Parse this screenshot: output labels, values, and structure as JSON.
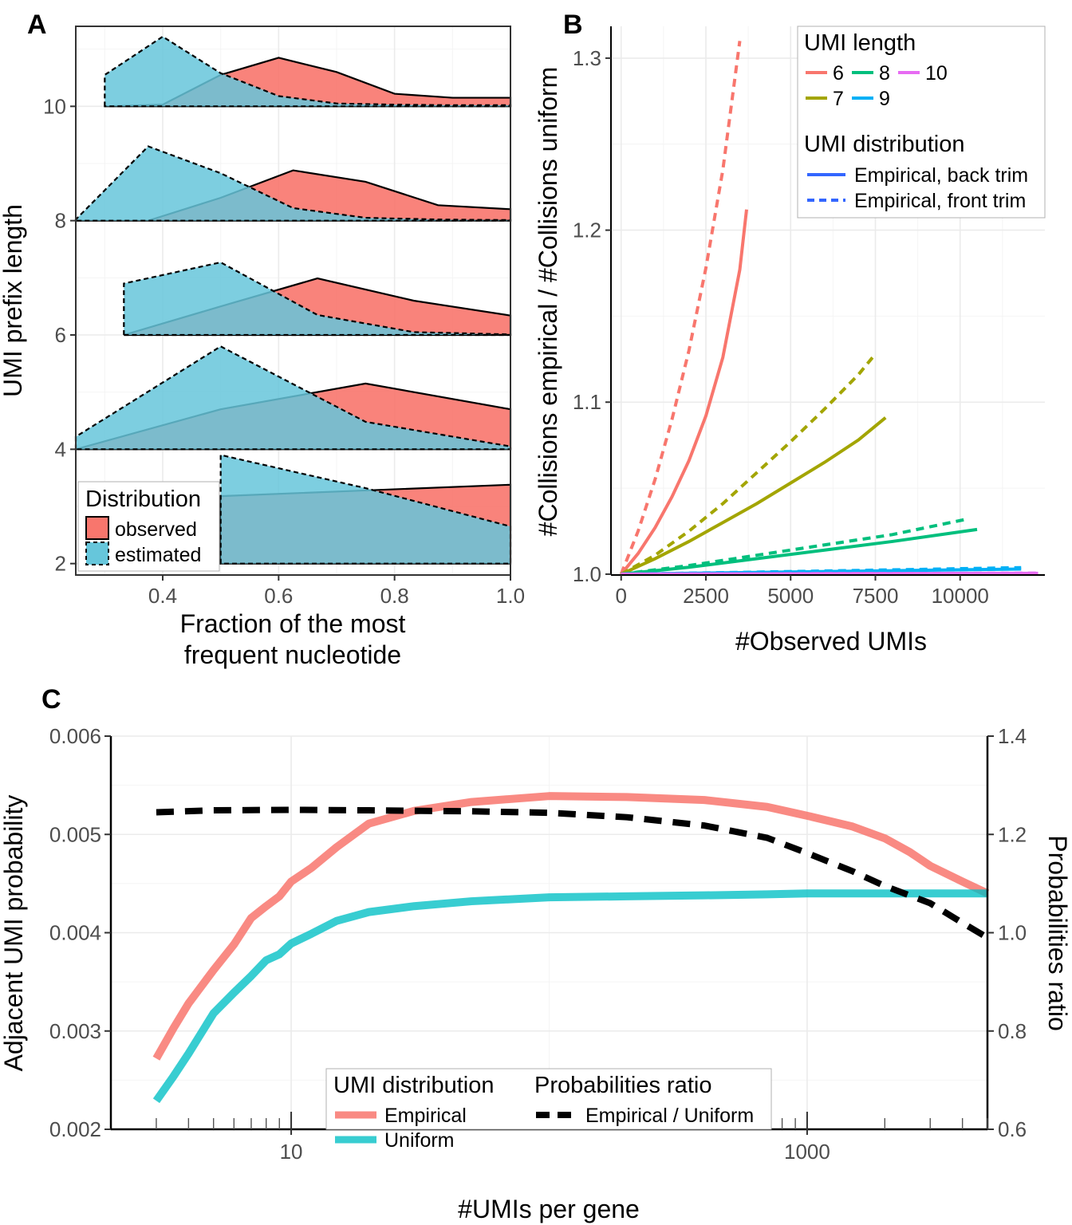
{
  "colors": {
    "observed": "#F8766D",
    "estimated": "#66C6DB",
    "len6": "#F8766D",
    "len7": "#A3A500",
    "len8": "#00BF7D",
    "len9": "#00B0F6",
    "len10": "#E76BF3",
    "blue": "#3366FF",
    "empirical": "#F8766D",
    "uniform": "#00BFC4",
    "ratio": "#000000"
  },
  "chart_data": [
    {
      "panel": "A",
      "type": "area",
      "xlabel": "Fraction of the most frequent nucleotide",
      "xlabel_lines": [
        "Fraction of the most",
        "frequent nucleotide"
      ],
      "ylabel": "UMI prefix length",
      "xlim": [
        0.25,
        1.0
      ],
      "ylim": [
        1.8,
        11.4
      ],
      "xticks": [
        0.4,
        0.6,
        0.8,
        1.0
      ],
      "xtick_labels": [
        "0.4",
        "0.6",
        "0.8",
        "1.0"
      ],
      "yticks": [
        2,
        4,
        6,
        8,
        10
      ],
      "ytick_labels": [
        "2",
        "4",
        "6",
        "8",
        "10"
      ],
      "legend": {
        "title": "Distribution",
        "position": "bottom-left",
        "items": [
          "observed",
          "estimated"
        ]
      },
      "ridges": [
        {
          "prefix_length": 10,
          "observed": [
            [
              0.3,
              10.0
            ],
            [
              0.4,
              10.03
            ],
            [
              0.5,
              10.55
            ],
            [
              0.6,
              10.85
            ],
            [
              0.7,
              10.6
            ],
            [
              0.8,
              10.22
            ],
            [
              0.9,
              10.15
            ],
            [
              1.0,
              10.15
            ]
          ],
          "estimated": [
            [
              0.3,
              10.55
            ],
            [
              0.4,
              11.22
            ],
            [
              0.5,
              10.58
            ],
            [
              0.6,
              10.18
            ],
            [
              0.7,
              10.05
            ],
            [
              0.8,
              10.03
            ],
            [
              0.9,
              10.02
            ],
            [
              1.0,
              10.02
            ]
          ]
        },
        {
          "prefix_length": 8,
          "observed": [
            [
              0.25,
              8.0
            ],
            [
              0.375,
              8.0
            ],
            [
              0.5,
              8.4
            ],
            [
              0.625,
              8.88
            ],
            [
              0.75,
              8.68
            ],
            [
              0.875,
              8.27
            ],
            [
              1.0,
              8.2
            ]
          ],
          "estimated": [
            [
              0.25,
              8.02
            ],
            [
              0.375,
              9.3
            ],
            [
              0.5,
              8.83
            ],
            [
              0.625,
              8.22
            ],
            [
              0.75,
              8.05
            ],
            [
              0.875,
              8.02
            ],
            [
              1.0,
              8.01
            ]
          ]
        },
        {
          "prefix_length": 6,
          "observed": [
            [
              0.333,
              6.0
            ],
            [
              0.5,
              6.5
            ],
            [
              0.667,
              6.99
            ],
            [
              0.833,
              6.6
            ],
            [
              1.0,
              6.34
            ]
          ],
          "estimated": [
            [
              0.333,
              6.9
            ],
            [
              0.5,
              7.27
            ],
            [
              0.667,
              6.35
            ],
            [
              0.833,
              6.05
            ],
            [
              1.0,
              6.01
            ]
          ]
        },
        {
          "prefix_length": 4,
          "observed": [
            [
              0.25,
              4.0
            ],
            [
              0.5,
              4.7
            ],
            [
              0.75,
              5.15
            ],
            [
              1.0,
              4.7
            ]
          ],
          "estimated": [
            [
              0.25,
              4.22
            ],
            [
              0.5,
              5.8
            ],
            [
              0.75,
              4.48
            ],
            [
              1.0,
              4.05
            ]
          ]
        },
        {
          "prefix_length": 2,
          "observed": [
            [
              0.5,
              3.18
            ],
            [
              0.75,
              3.28
            ],
            [
              1.0,
              3.38
            ]
          ],
          "estimated": [
            [
              0.5,
              3.9
            ],
            [
              0.75,
              3.32
            ],
            [
              1.0,
              2.65
            ]
          ]
        }
      ]
    },
    {
      "panel": "B",
      "type": "line",
      "xlabel": "#Observed UMIs",
      "ylabel": "#Collisions empirical / #Collisions uniform",
      "xlim": [
        -300,
        12500
      ],
      "ylim": [
        0.9995,
        1.3185
      ],
      "xticks": [
        0,
        2500,
        5000,
        7500,
        10000
      ],
      "xtick_labels": [
        "0",
        "2500",
        "5000",
        "7500",
        "10000"
      ],
      "yticks": [
        1.0,
        1.1,
        1.2,
        1.3
      ],
      "ytick_labels": [
        "1.0",
        "1.1",
        "1.2",
        "1.3"
      ],
      "legend": {
        "position": "top-right",
        "length_title": "UMI length",
        "length_items": [
          "6",
          "7",
          "8",
          "9",
          "10"
        ],
        "distribution_title": "UMI distribution",
        "distribution_items": [
          "Empirical, back trim",
          "Empirical, front trim"
        ]
      },
      "series": [
        {
          "name": "6",
          "trim": "back",
          "x": [
            0,
            500,
            1000,
            1500,
            2000,
            2500,
            3000,
            3500,
            3700
          ],
          "y": [
            1.0,
            1.012,
            1.027,
            1.045,
            1.066,
            1.092,
            1.126,
            1.177,
            1.212
          ]
        },
        {
          "name": "6",
          "trim": "front",
          "x": [
            0,
            500,
            1000,
            1500,
            2000,
            2500,
            3000,
            3500
          ],
          "y": [
            1.0,
            1.025,
            1.055,
            1.09,
            1.13,
            1.178,
            1.235,
            1.31
          ]
        },
        {
          "name": "7",
          "trim": "back",
          "x": [
            0,
            1000,
            2000,
            3000,
            4000,
            5000,
            6000,
            7000,
            7800
          ],
          "y": [
            1.0,
            1.009,
            1.019,
            1.03,
            1.041,
            1.053,
            1.065,
            1.078,
            1.091
          ]
        },
        {
          "name": "7",
          "trim": "front",
          "x": [
            0,
            1000,
            2000,
            3000,
            4000,
            5000,
            6000,
            7000,
            7500
          ],
          "y": [
            1.0,
            1.011,
            1.025,
            1.041,
            1.059,
            1.077,
            1.096,
            1.116,
            1.128
          ]
        },
        {
          "name": "8",
          "trim": "back",
          "x": [
            0,
            2000,
            4000,
            6000,
            8000,
            10500
          ],
          "y": [
            1.0,
            1.004,
            1.009,
            1.014,
            1.019,
            1.026
          ]
        },
        {
          "name": "8",
          "trim": "front",
          "x": [
            0,
            2000,
            4000,
            6000,
            8000,
            10200
          ],
          "y": [
            1.0,
            1.005,
            1.011,
            1.017,
            1.023,
            1.032
          ]
        },
        {
          "name": "9",
          "trim": "back",
          "x": [
            0,
            4000,
            8000,
            11800
          ],
          "y": [
            1.0,
            1.001,
            1.002,
            1.003
          ]
        },
        {
          "name": "9",
          "trim": "front",
          "x": [
            0,
            4000,
            8000,
            11800
          ],
          "y": [
            1.0,
            1.0012,
            1.0025,
            1.0038
          ]
        },
        {
          "name": "10",
          "trim": "back",
          "x": [
            0,
            6000,
            12300
          ],
          "y": [
            1.0,
            1.0003,
            1.0005
          ]
        },
        {
          "name": "10",
          "trim": "front",
          "x": [
            0,
            6000,
            12300
          ],
          "y": [
            1.0,
            1.0003,
            1.0006
          ]
        }
      ]
    },
    {
      "panel": "C",
      "type": "line",
      "xlabel": "#UMIs per gene",
      "ylabel": "Adjacent UMI probability",
      "y2label": "Probabilities ratio",
      "xscale": "log",
      "xlim": [
        2,
        5000
      ],
      "ylim": [
        0.002,
        0.006
      ],
      "y2lim": [
        0.6,
        1.4
      ],
      "xticks": [
        10,
        1000
      ],
      "xtick_labels": [
        "10",
        "1000"
      ],
      "yticks": [
        0.002,
        0.003,
        0.004,
        0.005,
        0.006
      ],
      "ytick_labels": [
        "0.002",
        "0.003",
        "0.004",
        "0.005",
        "0.006"
      ],
      "y2ticks": [
        0.6,
        0.8,
        1.0,
        1.2,
        1.4
      ],
      "y2tick_labels": [
        "0.6",
        "0.8",
        "1.0",
        "1.2",
        "1.4"
      ],
      "legend": {
        "position": "bottom-center",
        "distribution_title": "UMI distribution",
        "distribution_items": [
          "Empirical",
          "Uniform"
        ],
        "ratio_title": "Probabilities ratio",
        "ratio_items": [
          "Empirical / Uniform"
        ]
      },
      "series": [
        {
          "name": "Empirical",
          "axis": "left",
          "x": [
            3,
            3.5,
            4,
            5,
            6,
            7,
            8,
            9,
            10,
            12,
            15,
            20,
            30,
            50,
            100,
            200,
            400,
            700,
            1000,
            1500,
            2000,
            2500,
            3000,
            4000,
            5000
          ],
          "y": [
            0.00272,
            0.00303,
            0.00328,
            0.00362,
            0.00388,
            0.00415,
            0.00427,
            0.00437,
            0.00452,
            0.00466,
            0.00487,
            0.00511,
            0.00524,
            0.00533,
            0.00539,
            0.00538,
            0.00535,
            0.00528,
            0.00519,
            0.00508,
            0.00496,
            0.00482,
            0.00468,
            0.00452,
            0.0044
          ]
        },
        {
          "name": "Uniform",
          "axis": "left",
          "x": [
            3,
            3.5,
            4,
            5,
            6,
            7,
            8,
            9,
            10,
            12,
            15,
            20,
            30,
            50,
            100,
            200,
            400,
            700,
            1000,
            2000,
            5000
          ],
          "y": [
            0.00229,
            0.00254,
            0.00277,
            0.00318,
            0.00339,
            0.00356,
            0.00372,
            0.00378,
            0.00389,
            0.00399,
            0.00412,
            0.00421,
            0.00427,
            0.00432,
            0.00436,
            0.00437,
            0.00438,
            0.00439,
            0.0044,
            0.0044,
            0.0044
          ]
        },
        {
          "name": "Empirical / Uniform",
          "axis": "right",
          "x": [
            3,
            5,
            10,
            20,
            50,
            100,
            200,
            400,
            700,
            1000,
            1500,
            2000,
            3000,
            4000,
            5000
          ],
          "y": [
            1.245,
            1.249,
            1.25,
            1.249,
            1.247,
            1.244,
            1.235,
            1.218,
            1.193,
            1.162,
            1.125,
            1.095,
            1.06,
            1.02,
            0.99
          ]
        }
      ]
    }
  ]
}
